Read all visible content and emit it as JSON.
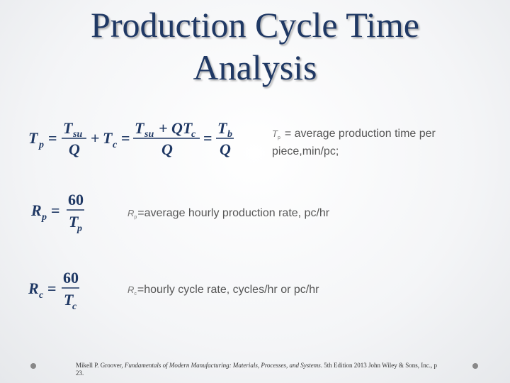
{
  "title": [
    "Production Cycle Time",
    "Analysis"
  ],
  "equations": [
    {
      "tokens": [
        "T",
        "p",
        "=",
        "T",
        "su",
        "Q",
        "+",
        "T",
        "c",
        "=",
        "T",
        "su",
        "+ QT",
        "c",
        "Q",
        "=",
        "T",
        "b",
        "Q"
      ]
    },
    {
      "tokens": [
        "R",
        "p",
        "=",
        "60",
        "T",
        "p"
      ]
    },
    {
      "tokens": [
        "R",
        "c",
        "=",
        "60",
        "T",
        "c"
      ]
    }
  ],
  "definitions": [
    {
      "symbol": "T",
      "sub": "p",
      "lines": [
        "= average production time per",
        "piece,min/pc;"
      ]
    },
    {
      "symbol": "R",
      "sub": "p",
      "lines": [
        "=average hourly production rate, pc/hr"
      ]
    },
    {
      "symbol": "R",
      "sub": "c",
      "lines": [
        "=hourly cycle rate, cycles/hr or pc/hr"
      ]
    }
  ],
  "citation": {
    "author": "Mikell P. Groover, ",
    "book": "Fundamentals of Modern Manufacturing: Materials, Processes, and Systems",
    "rest": ". 5th Edition 2013 John Wiley & Sons, Inc., p 23."
  }
}
